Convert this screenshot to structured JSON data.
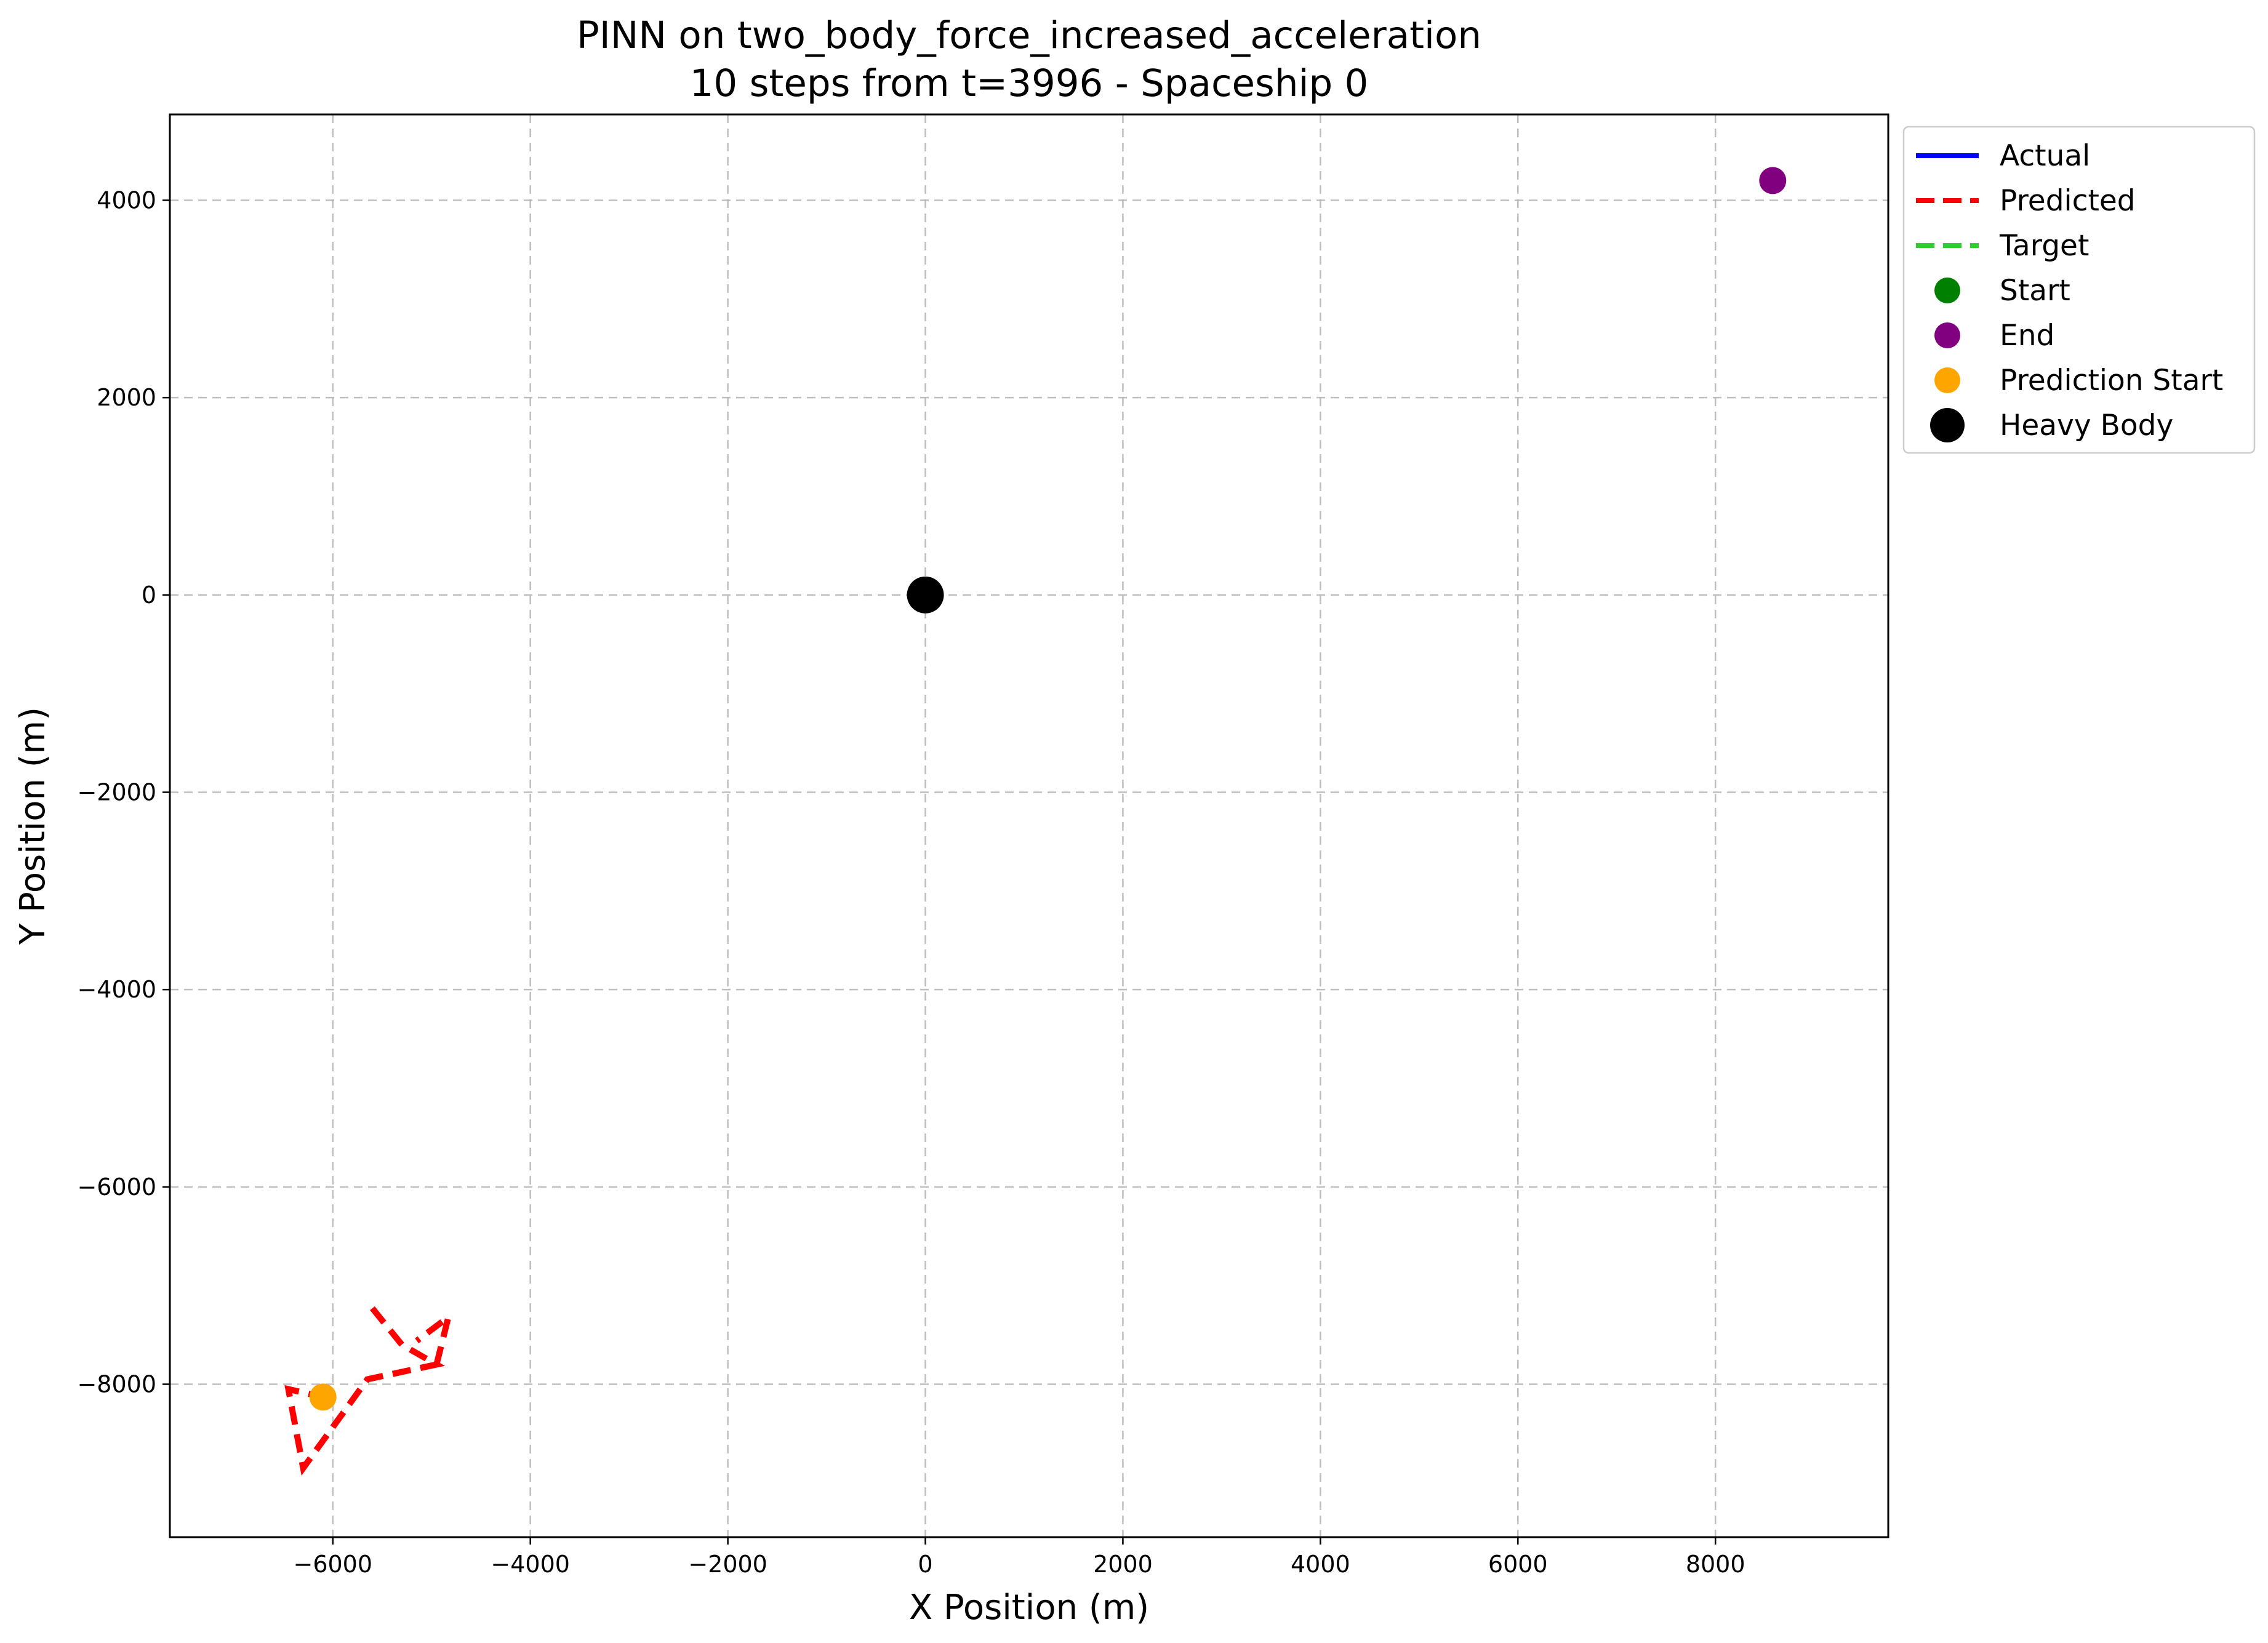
{
  "chart_data": {
    "type": "line",
    "title": "PINN on two_body_force_increased_acceleration",
    "subtitle": "10 steps from t=3996 - Spaceship 0",
    "xlabel": "X Position (m)",
    "ylabel": "Y Position (m)",
    "xlim": [
      -7650,
      9750
    ],
    "ylim": [
      -9550,
      4870
    ],
    "xticks": [
      -6000,
      -4000,
      -2000,
      0,
      2000,
      4000,
      6000,
      8000
    ],
    "yticks": [
      -8000,
      -6000,
      -4000,
      -2000,
      0,
      2000,
      4000
    ],
    "grid": true,
    "legend_position": "outside-upper-right",
    "series": [
      {
        "name": "Actual",
        "kind": "line",
        "color": "#0000ff",
        "style": "solid",
        "x": [],
        "y": []
      },
      {
        "name": "Predicted",
        "kind": "line",
        "color": "#ff0000",
        "style": "dashed",
        "x": [
          -5600,
          -5300,
          -4950,
          -5650,
          -6300,
          -6450,
          -6100
        ],
        "y": [
          -7230,
          -7600,
          -7800,
          -7950,
          -8850,
          -8050,
          -8130
        ]
      },
      {
        "name": "Target",
        "kind": "line",
        "color": "#32cd32",
        "style": "dashed",
        "x": [],
        "y": []
      },
      {
        "name": "Start",
        "kind": "point",
        "color": "#008000",
        "x": [],
        "y": []
      },
      {
        "name": "End",
        "kind": "point",
        "color": "#800080",
        "x": [
          8580
        ],
        "y": [
          4200
        ]
      },
      {
        "name": "Prediction Start",
        "kind": "point",
        "color": "#ffa500",
        "x": [
          -6100
        ],
        "y": [
          -8130
        ]
      },
      {
        "name": "Heavy Body",
        "kind": "point",
        "color": "#000000",
        "x": [
          0
        ],
        "y": [
          0
        ]
      }
    ],
    "predicted_extra_segment": {
      "x": [
        -4950,
        -4830,
        -5150
      ],
      "y": [
        -7800,
        -7320,
        -7560
      ]
    }
  }
}
